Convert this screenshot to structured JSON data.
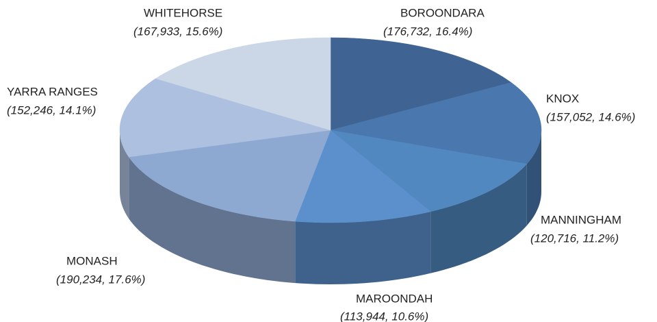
{
  "chart_data": {
    "type": "pie",
    "categories": [
      "BOROONDARA",
      "KNOX",
      "MANNINGHAM",
      "MAROONDAH",
      "MONASH",
      "YARRA RANGES",
      "WHITEHORSE"
    ],
    "values": [
      176732,
      157052,
      120716,
      113944,
      190234,
      152246,
      167933
    ],
    "value_labels": [
      "(176,732, 16.4%)",
      "(157,052, 14.6%)",
      "(120,716, 11.2%)",
      "(113,944, 10.6%)",
      "(190,234, 17.6%)",
      "(152,246, 14.1%)",
      "(167,933, 15.6%)"
    ],
    "colors": [
      "#3f6493",
      "#4a77ad",
      "#5088bf",
      "#5b90cc",
      "#8ea9d1",
      "#adc0e0",
      "#cbd7e6"
    ]
  }
}
